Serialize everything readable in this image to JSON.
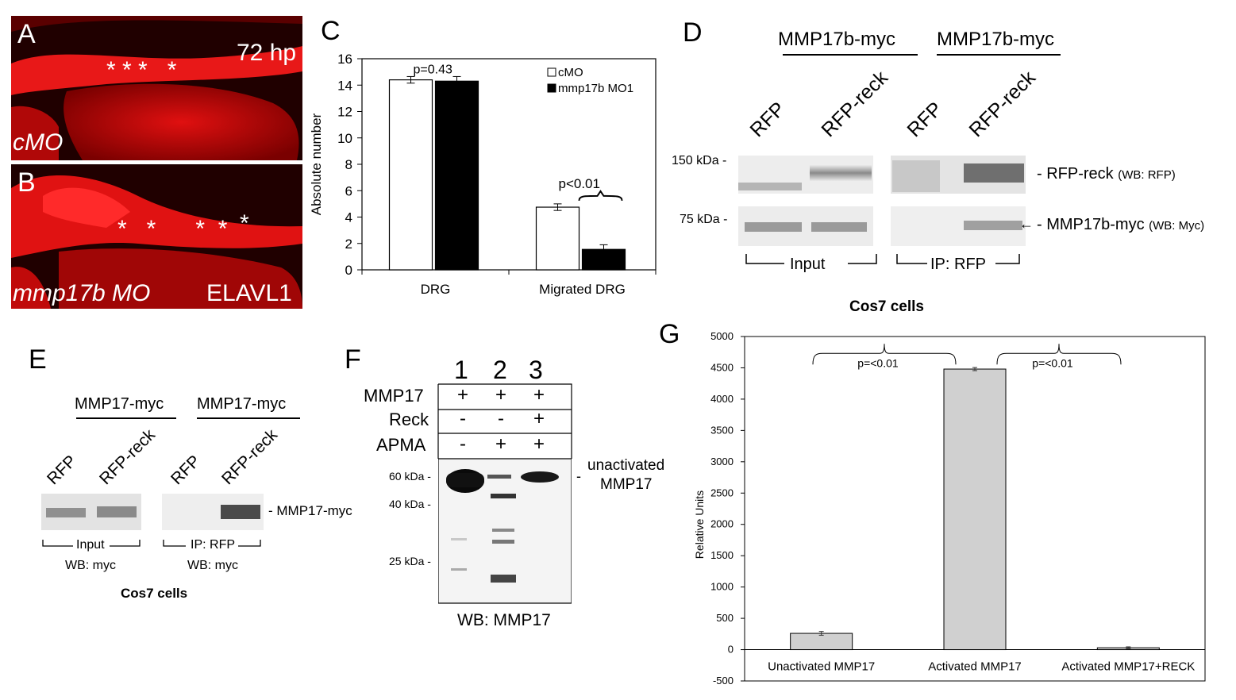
{
  "panelA": {
    "letter": "A",
    "time": "72 hp",
    "condition": "cMO"
  },
  "panelB": {
    "letter": "B",
    "condition": "mmp17b MO",
    "marker": "ELAVL1"
  },
  "panelC": {
    "letter": "C"
  },
  "panelD": {
    "letter": "D",
    "group1": "MMP17b-myc",
    "group2": "MMP17b-myc",
    "lanes": [
      "RFP",
      "RFP-reck",
      "RFP",
      "RFP-reck"
    ],
    "mw1": "150 kDa -",
    "mw2": "75 kDa -",
    "band1": "- RFP-reck",
    "band1_wb": "(WB: RFP)",
    "band2": "- MMP17b-myc",
    "band2_wb": "(WB: Myc)",
    "input": "Input",
    "ip": "IP: RFP",
    "cells": "Cos7 cells"
  },
  "panelE": {
    "letter": "E",
    "group1": "MMP17-myc",
    "group2": "MMP17-myc",
    "lanes": [
      "RFP",
      "RFP-reck",
      "RFP",
      "RFP-reck"
    ],
    "band": "- MMP17-myc",
    "input": "Input",
    "ip": "IP: RFP",
    "wb1": "WB: myc",
    "wb2": "WB: myc",
    "cells": "Cos7 cells"
  },
  "panelF": {
    "letter": "F",
    "lanes": [
      "1",
      "2",
      "3"
    ],
    "rows": [
      {
        "label": "MMP17",
        "vals": [
          "+",
          "+",
          "+"
        ]
      },
      {
        "label": "Reck",
        "vals": [
          "-",
          "-",
          "+"
        ]
      },
      {
        "label": "APMA",
        "vals": [
          "-",
          "+",
          "+"
        ]
      }
    ],
    "mw": [
      "60 kDa -",
      "40 kDa -",
      "25 kDa -"
    ],
    "band_label_1": "unactivated",
    "band_label_2": "MMP17",
    "wb": "WB: MMP17"
  },
  "panelG": {
    "letter": "G"
  },
  "chart_data": [
    {
      "type": "bar",
      "categories": [
        "DRG",
        "Migrated DRG"
      ],
      "series": [
        {
          "name": "cMO",
          "values": [
            14.4,
            4.75
          ],
          "errors": [
            0.25,
            0.25
          ],
          "color": "#ffffff"
        },
        {
          "name": "mmp17b MO1",
          "values": [
            14.3,
            1.55
          ],
          "errors": [
            0.35,
            0.35
          ],
          "color": "#000000"
        }
      ],
      "ylabel": "Absolute number",
      "ylim": [
        0,
        16
      ],
      "yticks": [
        0,
        2,
        4,
        6,
        8,
        10,
        12,
        14,
        16
      ],
      "annotations": [
        "p=0.43",
        "p<0.01"
      ],
      "legend": "top-right"
    },
    {
      "type": "bar",
      "categories": [
        "Unactivated MMP17",
        "Activated MMP17",
        "Activated MMP17+RECK"
      ],
      "values": [
        260,
        4480,
        30
      ],
      "errors": [
        30,
        25,
        15
      ],
      "color": "#d0d0d0",
      "ylabel": "Relative Units",
      "ylim": [
        -500,
        5000
      ],
      "yticks": [
        -500,
        0,
        500,
        1000,
        1500,
        2000,
        2500,
        3000,
        3500,
        4000,
        4500,
        5000
      ],
      "annotations": [
        "p=<0.01",
        "p=<0.01"
      ]
    }
  ]
}
